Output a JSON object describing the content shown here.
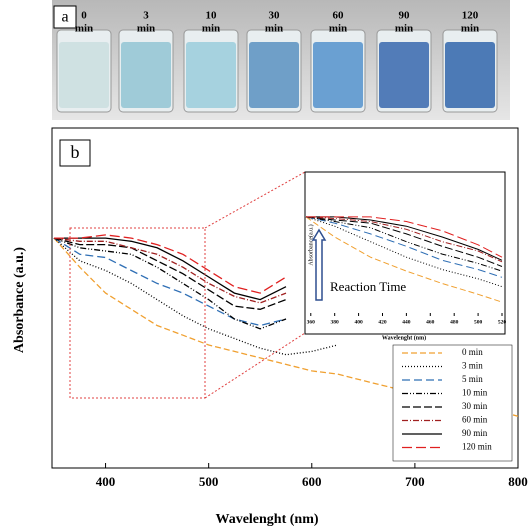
{
  "photo": {
    "label": "a",
    "vials": [
      {
        "time": "0",
        "unit": "min",
        "color": "#cfe1e2"
      },
      {
        "time": "3",
        "unit": "min",
        "color": "#9fcbd8"
      },
      {
        "time": "10",
        "unit": "min",
        "color": "#a6d2df"
      },
      {
        "time": "30",
        "unit": "min",
        "color": "#6f9fc8"
      },
      {
        "time": "60",
        "unit": "min",
        "color": "#6aa0d2"
      },
      {
        "time": "90",
        "unit": "min",
        "color": "#527cb8"
      },
      {
        "time": "120",
        "unit": "min",
        "color": "#4c7ab6"
      }
    ]
  },
  "chart_data": [
    {
      "type": "line",
      "panel_label": "b",
      "x_label": "Wavelenght (nm)",
      "y_label": "Absorbance (a.u.)",
      "x": [
        350,
        375,
        400,
        425,
        450,
        475,
        500,
        525,
        550,
        575,
        600,
        625,
        650,
        675,
        700,
        725,
        750,
        775,
        800
      ],
      "xlim": [
        350,
        800
      ],
      "xticks": [
        400,
        500,
        600,
        700,
        800
      ],
      "ylim": [
        0,
        1.05
      ],
      "series": [
        {
          "name": "0 min",
          "color": "#f0a030",
          "dash": "6 3",
          "values": [
            0.71,
            0.62,
            0.54,
            0.49,
            0.44,
            0.41,
            0.38,
            0.36,
            0.34,
            0.32,
            0.3,
            0.29,
            0.27,
            0.25,
            0.23,
            0.22,
            0.2,
            0.18,
            0.16
          ]
        },
        {
          "name": "3 min",
          "color": "#000000",
          "dash": "1 2",
          "values": [
            0.71,
            0.64,
            0.61,
            0.57,
            0.52,
            0.47,
            0.43,
            0.4,
            0.37,
            0.35,
            0.36,
            0.38,
            null,
            null,
            null,
            null,
            null,
            null,
            null
          ]
        },
        {
          "name": "5 min",
          "color": "#2f6fb5",
          "dash": "8 4",
          "values": [
            0.71,
            0.66,
            0.65,
            0.61,
            0.57,
            0.54,
            0.5,
            0.46,
            0.44,
            0.46,
            null,
            null,
            null,
            null,
            null,
            null,
            null,
            null,
            null
          ]
        },
        {
          "name": "10 min",
          "color": "#000000",
          "dash": "6 2 1 2 1 2",
          "values": [
            0.71,
            0.68,
            0.67,
            0.66,
            0.62,
            0.57,
            0.52,
            0.46,
            0.43,
            0.46,
            null,
            null,
            null,
            null,
            null,
            null,
            null,
            null,
            null
          ]
        },
        {
          "name": "30 min",
          "color": "#000000",
          "dash": "8 3",
          "values": [
            0.71,
            0.69,
            0.69,
            0.68,
            0.64,
            0.6,
            0.55,
            0.5,
            0.49,
            0.52,
            null,
            null,
            null,
            null,
            null,
            null,
            null,
            null,
            null
          ]
        },
        {
          "name": "60 min",
          "color": "#a02020",
          "dash": "6 2 1 2",
          "values": [
            0.71,
            0.7,
            0.7,
            0.68,
            0.66,
            0.62,
            0.57,
            0.53,
            0.51,
            0.54,
            null,
            null,
            null,
            null,
            null,
            null,
            null,
            null,
            null
          ]
        },
        {
          "name": "90 min",
          "color": "#000000",
          "dash": "none",
          "values": [
            0.71,
            0.71,
            0.71,
            0.7,
            0.68,
            0.64,
            0.59,
            0.54,
            0.52,
            0.56,
            null,
            null,
            null,
            null,
            null,
            null,
            null,
            null,
            null
          ]
        },
        {
          "name": "120 min",
          "color": "#e02020",
          "dash": "10 4",
          "values": [
            0.71,
            0.71,
            0.72,
            0.71,
            0.69,
            0.66,
            0.61,
            0.56,
            0.54,
            0.59,
            null,
            null,
            null,
            null,
            null,
            null,
            null,
            null,
            null
          ]
        }
      ]
    },
    {
      "type": "line",
      "x_label": "Wavelenght (nm)",
      "y_label": "Absorbance(a.u.)",
      "annotation": "Reaction Time",
      "x": [
        356,
        380,
        410,
        440,
        470,
        500,
        520
      ],
      "xlim": [
        356,
        520
      ],
      "xticks": [
        360,
        380,
        400,
        420,
        440,
        460,
        480,
        500,
        520
      ],
      "ylim": [
        0.1,
        1.03
      ],
      "series": [
        {
          "color": "#f0a030",
          "dash": "6 3",
          "values": [
            0.74,
            0.61,
            0.48,
            0.39,
            0.31,
            0.24,
            0.19
          ]
        },
        {
          "color": "#000000",
          "dash": "1 2",
          "values": [
            0.74,
            0.68,
            0.58,
            0.48,
            0.4,
            0.34,
            0.29
          ]
        },
        {
          "color": "#2f6fb5",
          "dash": "8 4",
          "values": [
            0.74,
            0.7,
            0.63,
            0.55,
            0.46,
            0.4,
            0.35
          ]
        },
        {
          "color": "#000000",
          "dash": "6 2 1 2 1 2",
          "values": [
            0.74,
            0.71,
            0.67,
            0.58,
            0.5,
            0.44,
            0.39
          ]
        },
        {
          "color": "#000000",
          "dash": "8 3",
          "values": [
            0.74,
            0.72,
            0.7,
            0.63,
            0.55,
            0.48,
            0.42
          ]
        },
        {
          "color": "#a02020",
          "dash": "6 2 1 2",
          "values": [
            0.74,
            0.73,
            0.71,
            0.66,
            0.58,
            0.52,
            0.45
          ]
        },
        {
          "color": "#000000",
          "dash": "none",
          "values": [
            0.74,
            0.74,
            0.72,
            0.68,
            0.61,
            0.53,
            0.46
          ]
        },
        {
          "color": "#e02020",
          "dash": "10 4",
          "values": [
            0.74,
            0.74,
            0.74,
            0.71,
            0.65,
            0.56,
            0.48
          ]
        }
      ]
    }
  ]
}
